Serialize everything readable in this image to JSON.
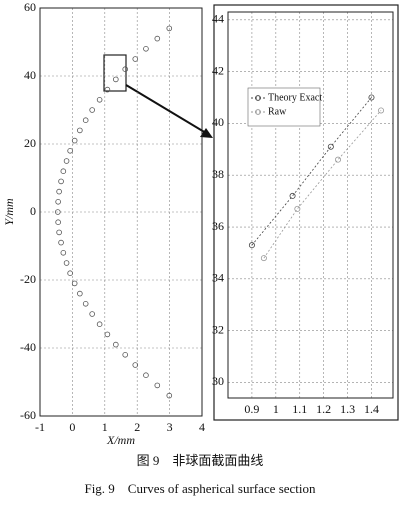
{
  "chart_data": [
    {
      "type": "scatter",
      "xlabel": "X/mm",
      "ylabel": "Y/mm",
      "x": [
        2.99,
        2.62,
        2.27,
        1.94,
        1.63,
        1.34,
        1.08,
        0.84,
        0.61,
        0.41,
        0.23,
        0.07,
        -0.07,
        -0.18,
        -0.28,
        -0.35,
        -0.41,
        -0.44,
        -0.45,
        -0.44,
        -0.41,
        -0.35,
        -0.28,
        -0.18,
        -0.07,
        0.07,
        0.23,
        0.41,
        0.61,
        0.84,
        1.08,
        1.34,
        1.63,
        1.94,
        2.27,
        2.62,
        2.99
      ],
      "series": [
        {
          "color": "#555555",
          "values": [
            -54,
            -51,
            -48,
            -45,
            -42,
            -39,
            -36,
            -33,
            -30,
            -27,
            -24,
            -21,
            -18,
            -15,
            -12,
            -9,
            -6,
            -3,
            0,
            3,
            6,
            9,
            12,
            15,
            18,
            21,
            24,
            27,
            30,
            33,
            36,
            39,
            42,
            45,
            48,
            51,
            54
          ]
        }
      ],
      "xlim": [
        -1,
        4
      ],
      "ylim": [
        -60,
        60
      ],
      "xticks": [
        -1,
        0,
        1,
        2,
        3,
        4
      ],
      "yticks": [
        -60,
        -40,
        -20,
        0,
        20,
        40,
        60
      ],
      "grid": true
    },
    {
      "type": "line",
      "series": [
        {
          "name": "Theory Exact",
          "color": "#444444",
          "x": [
            0.9,
            1.07,
            1.23,
            1.4
          ],
          "values": [
            35.3,
            37.2,
            39.1,
            41.0
          ]
        },
        {
          "name": "Raw",
          "color": "#999999",
          "x": [
            0.95,
            1.09,
            1.26,
            1.44
          ],
          "values": [
            34.8,
            36.7,
            38.6,
            40.5
          ]
        }
      ],
      "xlim": [
        0.8,
        1.49
      ],
      "ylim": [
        29.4,
        44.3
      ],
      "xticks": [
        0.9,
        1,
        1.1,
        1.2,
        1.3,
        1.4
      ],
      "yticks": [
        30,
        32,
        34,
        36,
        38,
        40,
        42,
        44
      ],
      "grid": true,
      "legend": "upper-left"
    }
  ],
  "caption": {
    "zh": "图 9　非球面截面曲线",
    "en": "Fig. 9　Curves of aspherical surface section"
  }
}
